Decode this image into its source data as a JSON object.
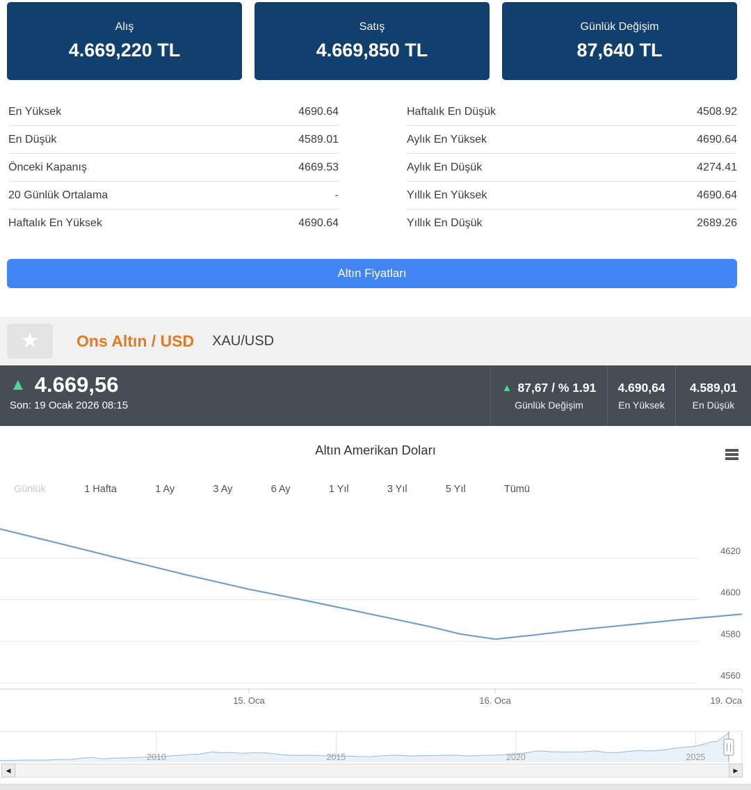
{
  "summary_cards": [
    {
      "label": "Alış",
      "value": "4.669,220 TL"
    },
    {
      "label": "Satış",
      "value": "4.669,850 TL"
    },
    {
      "label": "Günlük Değişim",
      "value": "87,640 TL"
    }
  ],
  "stats": {
    "left": [
      {
        "label": "En Yüksek",
        "value": "4690.64"
      },
      {
        "label": "En Düşük",
        "value": "4589.01"
      },
      {
        "label": "Önceki Kapanış",
        "value": "4669.53"
      },
      {
        "label": "20 Günlük Ortalama",
        "value": "-"
      },
      {
        "label": "Haftalık En Yüksek",
        "value": "4690.64"
      }
    ],
    "right": [
      {
        "label": "Haftalık En Düşük",
        "value": "4508.92"
      },
      {
        "label": "Aylık En Yüksek",
        "value": "4690.64"
      },
      {
        "label": "Aylık En Düşük",
        "value": "4274.41"
      },
      {
        "label": "Yıllık En Yüksek",
        "value": "4690.64"
      },
      {
        "label": "Yıllık En Düşük",
        "value": "2689.26"
      }
    ]
  },
  "button": {
    "label": "Altın Fiyatları"
  },
  "instrument": {
    "title": "Ons Altın / USD",
    "code": "XAU/USD"
  },
  "ticker": {
    "price": "4.669,56",
    "last_label": "Son: 19 Ocak 2026 08:15",
    "cells": [
      {
        "value": "87,67 / % 1.91",
        "label": "Günlük Değişim",
        "up": true
      },
      {
        "value": "4.690,64",
        "label": "En Yüksek",
        "up": false
      },
      {
        "value": "4.589,01",
        "label": "En Düşük",
        "up": false
      }
    ]
  },
  "chart": {
    "title": "Altın Amerikan Doları",
    "ranges": [
      {
        "key": "gunluk",
        "label": "Günlük",
        "active": true
      },
      {
        "key": "1-hafta",
        "label": "1 Hafta",
        "active": false
      },
      {
        "key": "1-ay",
        "label": "1 Ay",
        "active": false
      },
      {
        "key": "3-ay",
        "label": "3 Ay",
        "active": false
      },
      {
        "key": "6-ay",
        "label": "6 Ay",
        "active": false
      },
      {
        "key": "1-yil",
        "label": "1 Yıl",
        "active": false
      },
      {
        "key": "3-yil",
        "label": "3 Yıl",
        "active": false
      },
      {
        "key": "5-yil",
        "label": "5 Yıl",
        "active": false
      },
      {
        "key": "tumu",
        "label": "Tümü",
        "active": false
      }
    ]
  },
  "chart_data": [
    {
      "type": "line",
      "title": "Altın Amerikan Doları",
      "ylabel": "",
      "xlabel": "",
      "ylim": [
        4557,
        4640
      ],
      "yticks": [
        4560,
        4580,
        4600,
        4620
      ],
      "xticks": [
        {
          "label": "15. Oca",
          "frac": 0.3355
        },
        {
          "label": "16. Oca",
          "frac": 0.6673
        },
        {
          "label": "19. Oca",
          "frac": 1.0
        }
      ],
      "line_color": "#6f9fce",
      "series": [
        {
          "name": "XAU/USD",
          "x_frac": [
            0,
            0.08,
            0.17,
            0.25,
            0.3355,
            0.42,
            0.5,
            0.58,
            0.62,
            0.6673,
            0.72,
            0.78,
            0.85,
            0.92,
            1
          ],
          "values": [
            4634,
            4627,
            4619,
            4612,
            4605,
            4599,
            4593,
            4587,
            4583.5,
            4581,
            4583,
            4585.5,
            4588,
            4590.5,
            4593
          ]
        }
      ]
    },
    {
      "type": "area",
      "role": "navigator",
      "xlim": [
        2005.65,
        2025.92
      ],
      "ylim": [
        300,
        4800
      ],
      "xticks": [
        2010,
        2015,
        2020,
        2025
      ],
      "line_color": "#a3c3e0",
      "fill_color": "#e9f1f9",
      "years": [
        2005.65,
        2006,
        2006.4,
        2006.8,
        2007.2,
        2007.6,
        2008,
        2008.2,
        2008.5,
        2008.8,
        2009.2,
        2009.6,
        2010,
        2010.4,
        2010.8,
        2011.2,
        2011.55,
        2011.8,
        2012.1,
        2012.4,
        2012.8,
        2013.1,
        2013.5,
        2013.9,
        2014.3,
        2014.7,
        2015.1,
        2015.5,
        2015.9,
        2016.3,
        2016.7,
        2017.1,
        2017.5,
        2017.9,
        2018.3,
        2018.7,
        2019.1,
        2019.5,
        2019.9,
        2020.25,
        2020.6,
        2021,
        2021.4,
        2021.8,
        2022.2,
        2022.5,
        2022.8,
        2023.1,
        2023.4,
        2023.8,
        2024.1,
        2024.4,
        2024.7,
        2025,
        2025.2,
        2025.45,
        2025.6,
        2025.75,
        2025.85,
        2025.92
      ],
      "values": [
        520,
        560,
        620,
        590,
        665,
        685,
        920,
        1000,
        790,
        880,
        950,
        1005,
        1120,
        1225,
        1355,
        1480,
        1820,
        1680,
        1725,
        1595,
        1715,
        1645,
        1395,
        1285,
        1320,
        1245,
        1215,
        1155,
        1085,
        1245,
        1330,
        1215,
        1260,
        1295,
        1340,
        1215,
        1300,
        1345,
        1490,
        1630,
        1950,
        1835,
        1785,
        1810,
        1950,
        1735,
        1685,
        1875,
        2010,
        1945,
        2105,
        2335,
        2505,
        2655,
        2905,
        3305,
        3345,
        3955,
        4305,
        4690
      ]
    }
  ],
  "icons": {
    "star": "★",
    "up": "▲",
    "left": "◀",
    "right": "▶"
  },
  "colors": {
    "card_bg": "#11406f",
    "button_bg": "#4285f4",
    "ticker_bg": "#464d55",
    "accent_orange": "#e07b20",
    "up_green": "#4cd796",
    "chart_line": "#6f9fce"
  }
}
